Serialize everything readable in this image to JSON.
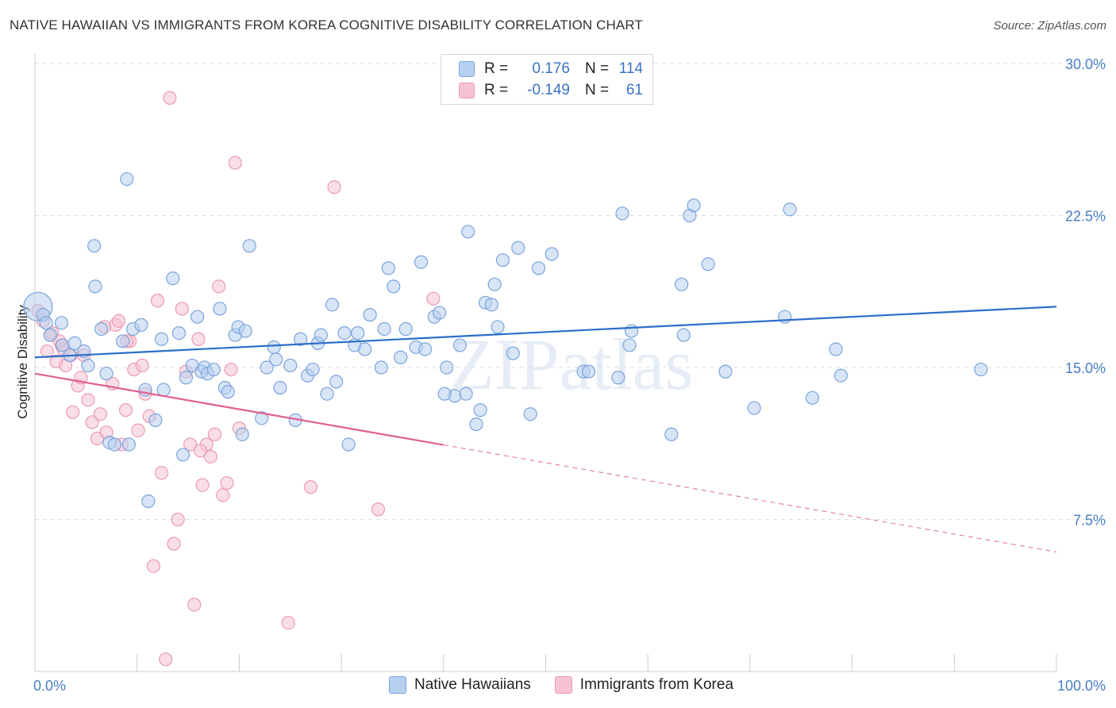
{
  "title": "NATIVE HAWAIIAN VS IMMIGRANTS FROM KOREA COGNITIVE DISABILITY CORRELATION CHART",
  "source": "Source: ZipAtlas.com",
  "watermark": "ZIPatlas",
  "colors": {
    "blue_fill": "#b8d0f0",
    "blue_stroke": "#7ba4db",
    "blue_line": "#2a6fc9",
    "pink_fill": "#f6c3d4",
    "pink_stroke": "#ea9ab5",
    "pink_line": "#e0608e",
    "value_text": "#3b73c4",
    "grid": "#dddddd"
  },
  "legend": {
    "rows": [
      {
        "r_label": "R =",
        "r_value": "0.176",
        "n_label": "N =",
        "n_value": "114"
      },
      {
        "r_label": "R =",
        "r_value": "-0.149",
        "n_label": "N =",
        "n_value": "61"
      }
    ]
  },
  "bottom_legend": {
    "items": [
      "Native Hawaiians",
      "Immigrants from Korea"
    ]
  },
  "chart_data": {
    "type": "scatter",
    "title": "NATIVE HAWAIIAN VS IMMIGRANTS FROM KOREA COGNITIVE DISABILITY CORRELATION CHART",
    "xlabel": "",
    "ylabel": "Cognitive Disability",
    "xlim": [
      0,
      100
    ],
    "ylim": [
      0,
      30
    ],
    "x_tick_labels": [
      "0.0%",
      "100.0%"
    ],
    "y_ticks": [
      7.5,
      15.0,
      22.5,
      30.0
    ],
    "y_tick_labels": [
      "7.5%",
      "15.0%",
      "22.5%",
      "30.0%"
    ],
    "grid": true,
    "legend_position": "top-center",
    "series": [
      {
        "name": "Native Hawaiians",
        "r": 0.176,
        "n": 114,
        "trend": {
          "x": [
            0,
            100
          ],
          "y": [
            15.5,
            18.0
          ]
        },
        "points": [
          [
            0.3,
            18.0
          ],
          [
            0.8,
            17.6
          ],
          [
            1.1,
            17.2
          ],
          [
            1.5,
            16.6
          ],
          [
            2.6,
            17.2
          ],
          [
            2.7,
            16.1
          ],
          [
            3.4,
            15.6
          ],
          [
            4.8,
            15.8
          ],
          [
            5.2,
            15.1
          ],
          [
            5.8,
            21.0
          ],
          [
            5.9,
            19.0
          ],
          [
            6.5,
            16.9
          ],
          [
            7.0,
            14.7
          ],
          [
            7.3,
            11.3
          ],
          [
            7.8,
            11.2
          ],
          [
            8.6,
            16.3
          ],
          [
            9.0,
            24.3
          ],
          [
            9.2,
            11.2
          ],
          [
            9.6,
            16.9
          ],
          [
            10.4,
            17.1
          ],
          [
            10.8,
            13.9
          ],
          [
            11.1,
            8.4
          ],
          [
            11.8,
            12.4
          ],
          [
            12.4,
            16.4
          ],
          [
            12.6,
            13.9
          ],
          [
            13.5,
            19.4
          ],
          [
            14.1,
            16.7
          ],
          [
            14.5,
            10.7
          ],
          [
            14.8,
            14.5
          ],
          [
            15.4,
            15.1
          ],
          [
            15.9,
            17.5
          ],
          [
            16.3,
            14.8
          ],
          [
            16.6,
            15.0
          ],
          [
            16.9,
            14.7
          ],
          [
            17.5,
            14.9
          ],
          [
            18.1,
            17.9
          ],
          [
            18.6,
            14.0
          ],
          [
            18.9,
            13.8
          ],
          [
            19.6,
            16.6
          ],
          [
            19.9,
            17.0
          ],
          [
            20.3,
            11.7
          ],
          [
            20.6,
            16.8
          ],
          [
            21.0,
            21.0
          ],
          [
            22.2,
            12.5
          ],
          [
            22.7,
            15.0
          ],
          [
            23.4,
            16.0
          ],
          [
            23.6,
            15.4
          ],
          [
            24.0,
            14.0
          ],
          [
            25.0,
            15.1
          ],
          [
            25.5,
            12.4
          ],
          [
            26.0,
            16.4
          ],
          [
            26.7,
            14.6
          ],
          [
            27.2,
            14.9
          ],
          [
            27.7,
            16.2
          ],
          [
            28.0,
            16.6
          ],
          [
            28.6,
            13.7
          ],
          [
            29.1,
            18.1
          ],
          [
            29.5,
            14.3
          ],
          [
            30.3,
            16.7
          ],
          [
            30.7,
            11.2
          ],
          [
            31.3,
            16.1
          ],
          [
            31.6,
            16.7
          ],
          [
            32.3,
            15.9
          ],
          [
            32.8,
            17.6
          ],
          [
            33.9,
            15.0
          ],
          [
            34.2,
            16.9
          ],
          [
            34.6,
            19.9
          ],
          [
            35.1,
            19.0
          ],
          [
            35.8,
            15.5
          ],
          [
            36.3,
            16.9
          ],
          [
            37.3,
            16.0
          ],
          [
            37.8,
            20.2
          ],
          [
            38.2,
            15.9
          ],
          [
            39.1,
            17.5
          ],
          [
            39.6,
            17.7
          ],
          [
            40.3,
            15.0
          ],
          [
            41.1,
            13.6
          ],
          [
            41.6,
            16.1
          ],
          [
            42.2,
            13.7
          ],
          [
            42.4,
            21.7
          ],
          [
            43.2,
            12.2
          ],
          [
            43.6,
            12.9
          ],
          [
            44.1,
            18.2
          ],
          [
            44.7,
            18.1
          ],
          [
            45.0,
            19.1
          ],
          [
            45.3,
            17.0
          ],
          [
            45.8,
            20.3
          ],
          [
            46.8,
            15.7
          ],
          [
            47.3,
            20.9
          ],
          [
            48.5,
            12.7
          ],
          [
            49.3,
            19.9
          ],
          [
            50.6,
            20.6
          ],
          [
            53.7,
            14.8
          ],
          [
            54.2,
            14.8
          ],
          [
            57.1,
            14.5
          ],
          [
            57.5,
            22.6
          ],
          [
            58.2,
            16.1
          ],
          [
            58.4,
            16.8
          ],
          [
            62.3,
            11.7
          ],
          [
            63.3,
            19.1
          ],
          [
            63.5,
            16.6
          ],
          [
            64.1,
            22.5
          ],
          [
            64.5,
            23.0
          ],
          [
            65.9,
            20.1
          ],
          [
            67.6,
            14.8
          ],
          [
            70.4,
            13.0
          ],
          [
            73.4,
            17.5
          ],
          [
            73.9,
            22.8
          ],
          [
            76.1,
            13.5
          ],
          [
            78.4,
            15.9
          ],
          [
            78.9,
            14.6
          ],
          [
            92.6,
            14.9
          ],
          [
            3.9,
            16.2
          ],
          [
            40.1,
            13.7
          ]
        ]
      },
      {
        "name": "Immigrants from Korea",
        "r": -0.149,
        "n": 61,
        "trend": {
          "x": [
            0,
            100
          ],
          "y": [
            14.7,
            5.9
          ]
        },
        "trend_solid_until_x": 40,
        "points": [
          [
            0.3,
            17.8
          ],
          [
            0.8,
            17.3
          ],
          [
            1.5,
            16.6
          ],
          [
            1.7,
            16.7
          ],
          [
            2.1,
            15.3
          ],
          [
            2.6,
            16.1
          ],
          [
            2.8,
            15.9
          ],
          [
            3.0,
            15.1
          ],
          [
            3.5,
            15.6
          ],
          [
            3.7,
            12.8
          ],
          [
            4.2,
            14.1
          ],
          [
            4.5,
            14.5
          ],
          [
            4.8,
            15.6
          ],
          [
            5.2,
            13.4
          ],
          [
            5.6,
            12.3
          ],
          [
            6.1,
            11.5
          ],
          [
            6.4,
            12.7
          ],
          [
            7.0,
            11.8
          ],
          [
            7.6,
            14.2
          ],
          [
            7.9,
            17.1
          ],
          [
            8.2,
            17.3
          ],
          [
            8.5,
            11.2
          ],
          [
            8.9,
            12.9
          ],
          [
            9.3,
            16.3
          ],
          [
            9.7,
            14.9
          ],
          [
            10.1,
            11.9
          ],
          [
            10.5,
            15.1
          ],
          [
            10.8,
            13.7
          ],
          [
            11.2,
            12.6
          ],
          [
            11.6,
            5.2
          ],
          [
            12.0,
            18.3
          ],
          [
            12.4,
            9.8
          ],
          [
            12.8,
            0.6
          ],
          [
            13.2,
            28.3
          ],
          [
            13.6,
            6.3
          ],
          [
            14.0,
            7.5
          ],
          [
            14.4,
            17.9
          ],
          [
            14.8,
            14.8
          ],
          [
            15.2,
            11.2
          ],
          [
            15.6,
            3.3
          ],
          [
            16.0,
            16.4
          ],
          [
            16.4,
            9.2
          ],
          [
            16.8,
            11.2
          ],
          [
            17.2,
            10.6
          ],
          [
            17.6,
            11.7
          ],
          [
            18.0,
            19.0
          ],
          [
            18.4,
            8.7
          ],
          [
            18.8,
            9.3
          ],
          [
            19.2,
            14.9
          ],
          [
            19.6,
            25.1
          ],
          [
            20.0,
            12.0
          ],
          [
            24.8,
            2.4
          ],
          [
            27.0,
            9.1
          ],
          [
            29.3,
            23.9
          ],
          [
            33.6,
            8.0
          ],
          [
            39.0,
            18.4
          ],
          [
            16.2,
            10.9
          ],
          [
            6.8,
            17.0
          ],
          [
            1.2,
            15.8
          ],
          [
            2.4,
            16.3
          ],
          [
            9.0,
            16.3
          ]
        ]
      }
    ]
  }
}
